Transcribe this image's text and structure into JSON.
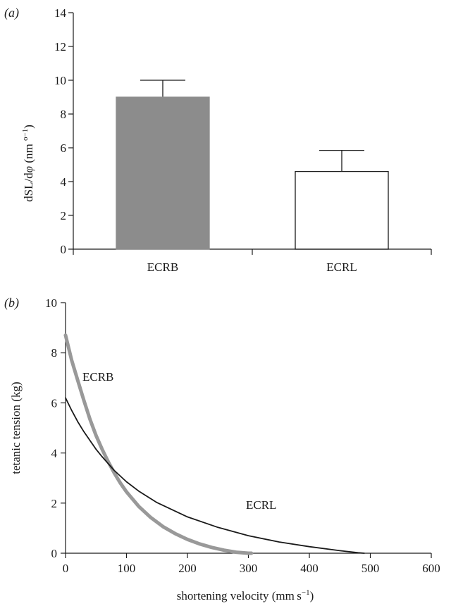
{
  "chart_data": [
    {
      "panel": "(a)",
      "type": "bar",
      "ylabel_parts": [
        "dSL/d",
        "φ",
        " (nm ",
        "o−1",
        ")"
      ],
      "categories": [
        "ECRB",
        "ECRL"
      ],
      "values": [
        9.0,
        4.6
      ],
      "error_upper": [
        10.0,
        5.85
      ],
      "bar_colors": [
        "#8c8c8c",
        "#ffffff"
      ],
      "bar_stroke": "#1a1a1a",
      "ylim": [
        0,
        14
      ],
      "yticks": [
        "0",
        "2",
        "4",
        "6",
        "8",
        "10",
        "12",
        "14"
      ],
      "grid": false
    },
    {
      "panel": "(b)",
      "type": "line",
      "xlabel_parts": [
        "shortening velocity (mm",
        " s",
        "−1",
        ")"
      ],
      "ylabel": "tetanic tension (kg)",
      "xlim": [
        0,
        600
      ],
      "ylim": [
        0,
        10
      ],
      "xticks": [
        "0",
        "100",
        "200",
        "300",
        "400",
        "500",
        "600"
      ],
      "yticks": [
        "0",
        "2",
        "4",
        "6",
        "8",
        "10"
      ],
      "grid": false,
      "series": [
        {
          "name": "ECRB",
          "color": "#999999",
          "x": [
            0,
            10,
            20,
            30,
            40,
            50,
            60,
            70,
            80,
            90,
            100,
            120,
            140,
            160,
            180,
            200,
            220,
            240,
            260,
            280,
            300,
            305
          ],
          "y": [
            8.7,
            7.7,
            6.9,
            6.1,
            5.35,
            4.7,
            4.15,
            3.65,
            3.2,
            2.8,
            2.45,
            1.87,
            1.42,
            1.06,
            0.78,
            0.55,
            0.37,
            0.23,
            0.12,
            0.04,
            0.0,
            0.0
          ]
        },
        {
          "name": "ECRL",
          "color": "#1a1a1a",
          "x": [
            0,
            10,
            20,
            30,
            40,
            50,
            60,
            80,
            100,
            120,
            150,
            200,
            250,
            300,
            350,
            400,
            450,
            480,
            490
          ],
          "y": [
            6.2,
            5.7,
            5.25,
            4.85,
            4.5,
            4.15,
            3.85,
            3.3,
            2.85,
            2.48,
            2.02,
            1.45,
            1.03,
            0.7,
            0.45,
            0.26,
            0.1,
            0.02,
            0.0
          ]
        }
      ]
    }
  ]
}
